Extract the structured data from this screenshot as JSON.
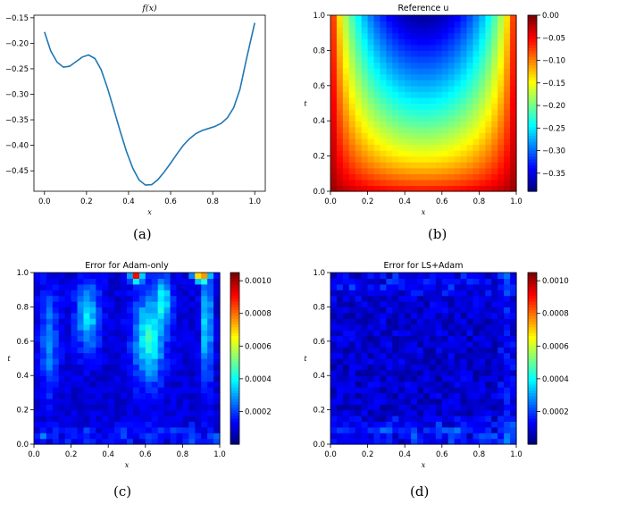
{
  "panels": {
    "a": {
      "caption": "(a)"
    },
    "b": {
      "caption": "(b)"
    },
    "c": {
      "caption": "(c)"
    },
    "d": {
      "caption": "(d)"
    }
  },
  "chart_data": [
    {
      "id": "a",
      "type": "line",
      "title": "f(x)",
      "xlabel": "x",
      "ylabel": "",
      "xlim": [
        -0.05,
        1.05
      ],
      "ylim": [
        -0.49,
        -0.145
      ],
      "xticks": [
        "0.0",
        "0.2",
        "0.4",
        "0.6",
        "0.8",
        "1.0"
      ],
      "yticks": [
        "-0.15",
        "-0.20",
        "-0.25",
        "-0.30",
        "-0.35",
        "-0.40",
        "-0.45"
      ],
      "line_color": "#1f77b4",
      "x": [
        0.0,
        0.03,
        0.06,
        0.09,
        0.12,
        0.15,
        0.18,
        0.21,
        0.24,
        0.27,
        0.3,
        0.33,
        0.36,
        0.39,
        0.42,
        0.45,
        0.48,
        0.51,
        0.54,
        0.57,
        0.6,
        0.63,
        0.66,
        0.69,
        0.72,
        0.75,
        0.78,
        0.81,
        0.84,
        0.87,
        0.9,
        0.93,
        0.96,
        1.0
      ],
      "y": [
        -0.178,
        -0.215,
        -0.237,
        -0.247,
        -0.245,
        -0.236,
        -0.227,
        -0.223,
        -0.23,
        -0.252,
        -0.288,
        -0.33,
        -0.372,
        -0.412,
        -0.445,
        -0.468,
        -0.478,
        -0.477,
        -0.467,
        -0.452,
        -0.435,
        -0.417,
        -0.4,
        -0.387,
        -0.377,
        -0.371,
        -0.367,
        -0.363,
        -0.357,
        -0.346,
        -0.326,
        -0.29,
        -0.232,
        -0.16
      ]
    },
    {
      "id": "b",
      "type": "heatmap",
      "title": "Reference u",
      "xlabel": "x",
      "ylabel": "t",
      "xlim": [
        0.0,
        1.0
      ],
      "ylim": [
        0.0,
        1.0
      ],
      "xticks": [
        "0.0",
        "0.2",
        "0.4",
        "0.6",
        "0.8",
        "1.0"
      ],
      "yticks": [
        "0.0",
        "0.2",
        "0.4",
        "0.6",
        "0.8",
        "1.0"
      ],
      "colormap": "jet",
      "color_range": [
        -0.39,
        0.0
      ],
      "colorbar_ticks": [
        "0.00",
        "-0.05",
        "-0.10",
        "-0.15",
        "-0.20",
        "-0.25",
        "-0.30",
        "-0.35"
      ],
      "grid_cells": [
        30,
        30
      ]
    },
    {
      "id": "c",
      "type": "heatmap",
      "title": "Error for Adam-only",
      "xlabel": "x",
      "ylabel": "t",
      "xlim": [
        0.0,
        1.0
      ],
      "ylim": [
        0.0,
        1.0
      ],
      "xticks": [
        "0.0",
        "0.2",
        "0.4",
        "0.6",
        "0.8",
        "1.0"
      ],
      "yticks": [
        "0.0",
        "0.2",
        "0.4",
        "0.6",
        "0.8",
        "1.0"
      ],
      "colormap": "jet",
      "color_range": [
        0.0,
        0.00105
      ],
      "colorbar_ticks": [
        "0.0010",
        "0.0008",
        "0.0006",
        "0.0004",
        "0.0002"
      ],
      "grid_cells": [
        30,
        30
      ]
    },
    {
      "id": "d",
      "type": "heatmap",
      "title": "Error for LS+Adam",
      "xlabel": "x",
      "ylabel": "t",
      "xlim": [
        0.0,
        1.0
      ],
      "ylim": [
        0.0,
        1.0
      ],
      "xticks": [
        "0.0",
        "0.2",
        "0.4",
        "0.6",
        "0.8",
        "1.0"
      ],
      "yticks": [
        "0.0",
        "0.2",
        "0.4",
        "0.6",
        "0.8",
        "1.0"
      ],
      "colormap": "jet",
      "color_range": [
        0.0,
        0.00105
      ],
      "colorbar_ticks": [
        "0.0010",
        "0.0008",
        "0.0006",
        "0.0004",
        "0.0002"
      ],
      "grid_cells": [
        30,
        30
      ]
    }
  ]
}
